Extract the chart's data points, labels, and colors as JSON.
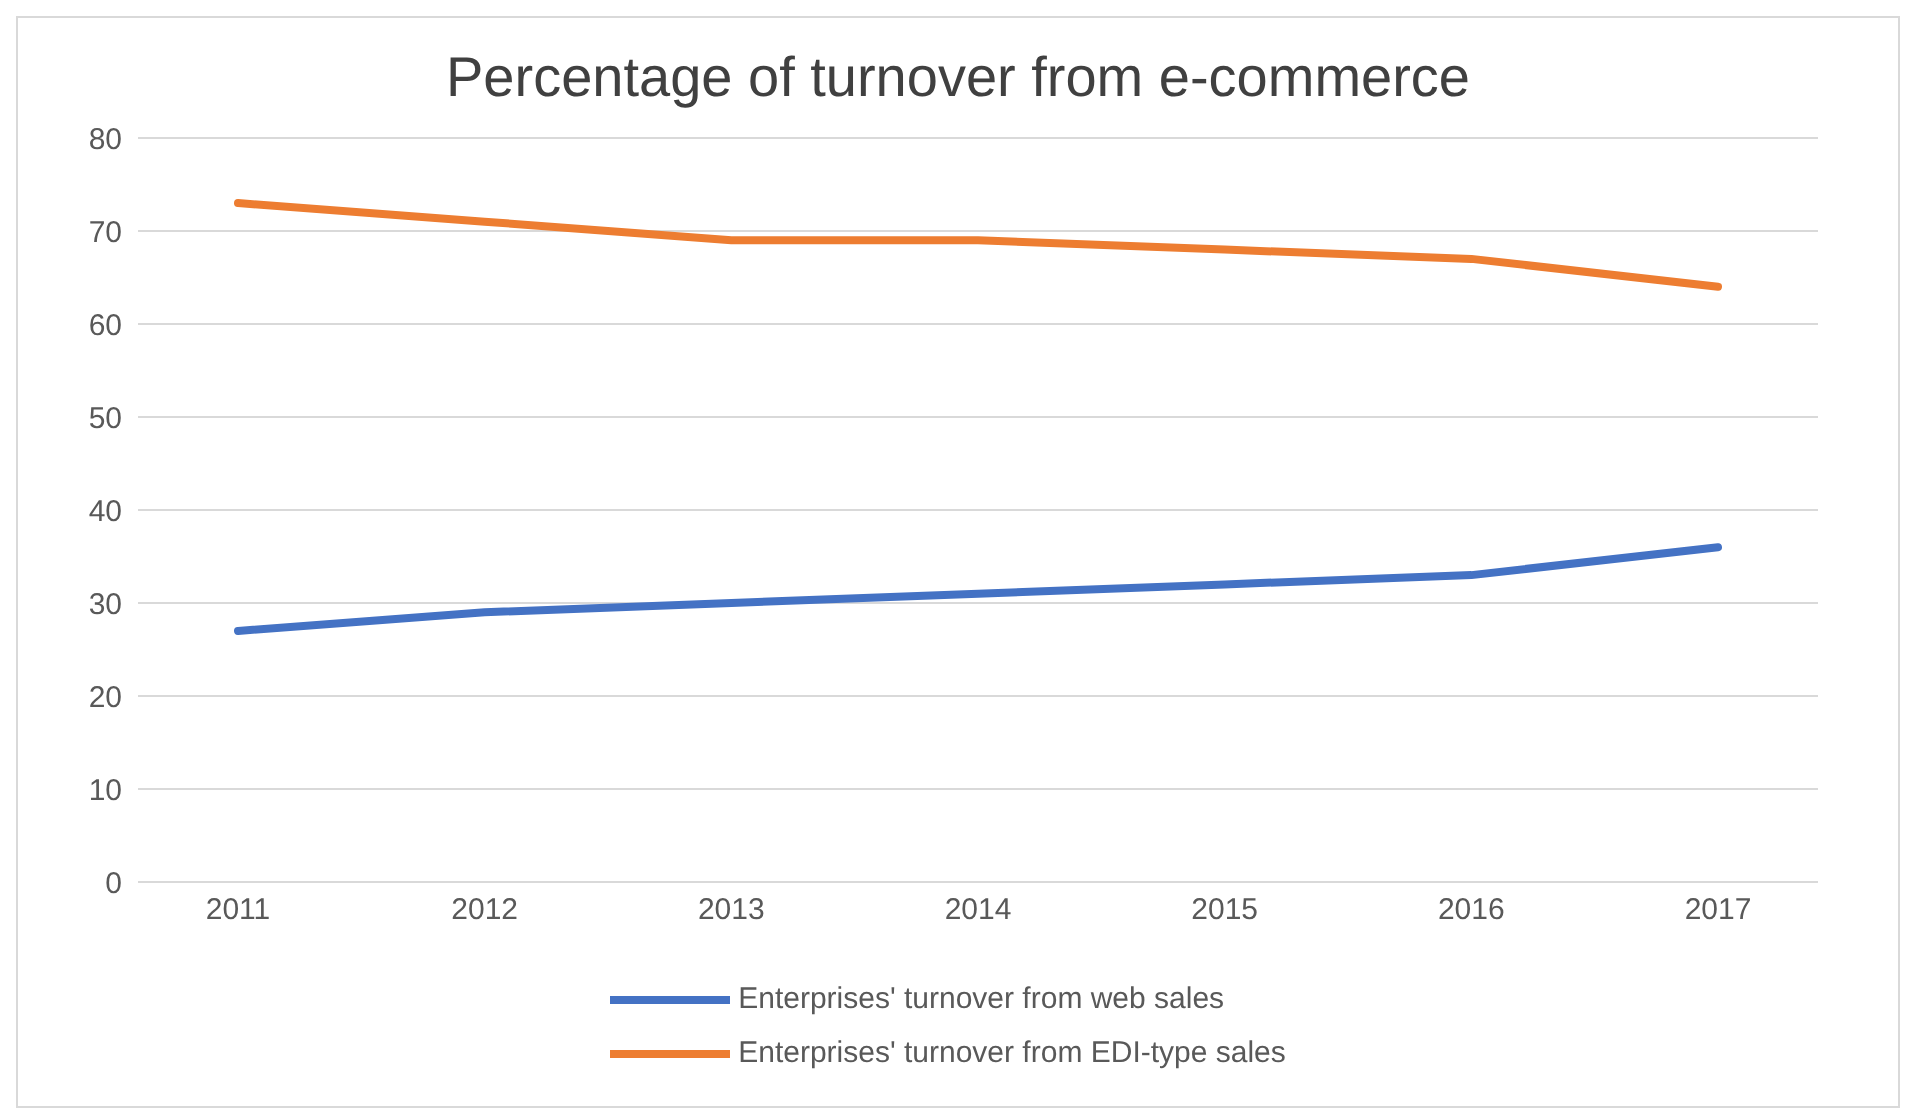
{
  "chart_data": {
    "type": "line",
    "title": "Percentage of turnover from e-commerce",
    "categories": [
      "2011",
      "2012",
      "2013",
      "2014",
      "2015",
      "2016",
      "2017"
    ],
    "series": [
      {
        "name": "Enterprises' turnover from web sales",
        "color": "#4472c4",
        "values": [
          27,
          29,
          30,
          31,
          32,
          33,
          36
        ]
      },
      {
        "name": "Enterprises' turnover from EDI-type sales",
        "color": "#ed7d31",
        "values": [
          73,
          71,
          69,
          69,
          68,
          67,
          64
        ]
      }
    ],
    "ylim": [
      0,
      80
    ],
    "yticks": [
      0,
      10,
      20,
      30,
      40,
      50,
      60,
      70,
      80
    ],
    "grid": "y",
    "legend": "bottom",
    "marker": "none",
    "line_style": "solid"
  }
}
